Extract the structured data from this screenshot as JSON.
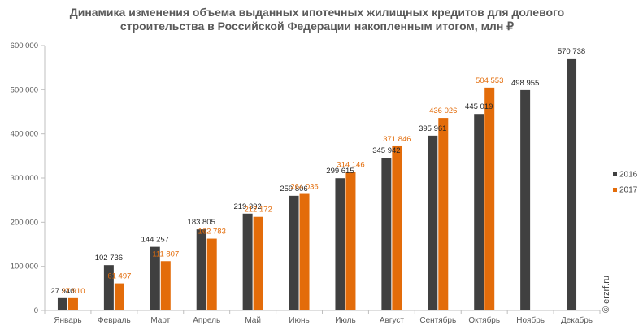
{
  "chart_data": {
    "type": "bar",
    "title": [
      "Динамика изменения объема выданных ипотечных жилищных кредитов для долевого",
      "строительства в Российской Федерации накопленным итогом, млн ₽"
    ],
    "categories": [
      "Январь",
      "Февраль",
      "Март",
      "Апрель",
      "Май",
      "Июнь",
      "Июль",
      "Август",
      "Сентябрь",
      "Октябрь",
      "Ноябрь",
      "Декабрь"
    ],
    "series": [
      {
        "name": "2016",
        "color": "#404040",
        "values": [
          27940,
          102736,
          144257,
          183805,
          219392,
          259806,
          299615,
          345942,
          395961,
          445019,
          498955,
          570738
        ],
        "labels": [
          "27 940",
          "102 736",
          "144 257",
          "183 805",
          "219 392",
          "259 806",
          "299 615",
          "345 942",
          "395 961",
          "445 019",
          "498 955",
          "570 738"
        ]
      },
      {
        "name": "2017",
        "color": "#E36C0A",
        "values": [
          27910,
          61497,
          111807,
          162783,
          212172,
          264036,
          314146,
          371846,
          436026,
          504553,
          null,
          null
        ],
        "labels": [
          "27 910",
          "61 497",
          "111 807",
          "162 783",
          "212 172",
          "264 036",
          "314 146",
          "371 846",
          "436 026",
          "504 553",
          null,
          null
        ]
      }
    ],
    "y_ticks": [
      0,
      100000,
      200000,
      300000,
      400000,
      500000,
      600000
    ],
    "y_tick_labels": [
      "0",
      "100 000",
      "200 000",
      "300 000",
      "400 000",
      "500 000",
      "600 000"
    ],
    "ylim": [
      0,
      600000
    ],
    "grid": false,
    "legend": "right",
    "credit": "© erzrf.ru"
  }
}
